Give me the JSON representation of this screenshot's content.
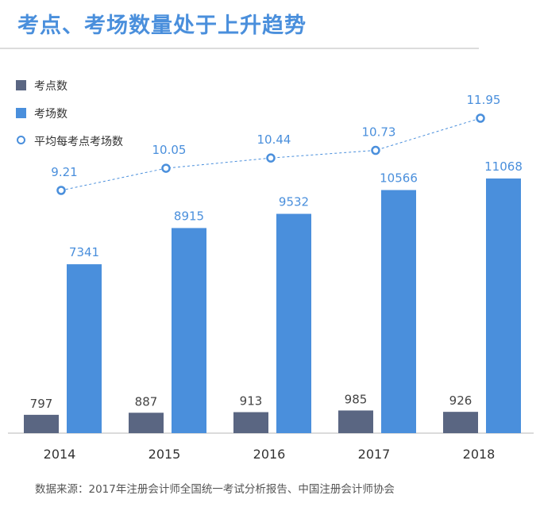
{
  "title": "考点、考场数量处于上升趋势",
  "legend": [
    "考点数",
    "考场数",
    "平均每考点考场数"
  ],
  "source": "数据来源：2017年注册会计师全国统一考试分析报告、中国注册会计师协会",
  "colors": {
    "exam_sites": "#5a6682",
    "exam_rooms": "#4a8fdc",
    "avg_line": "#4a8fdc",
    "title": "#4a8fdc"
  },
  "chart_data": {
    "type": "bar",
    "categories": [
      "2014",
      "2015",
      "2016",
      "2017",
      "2018"
    ],
    "series": [
      {
        "name": "考点数",
        "type": "bar",
        "values": [
          797,
          887,
          913,
          985,
          926
        ]
      },
      {
        "name": "考场数",
        "type": "bar",
        "values": [
          7341,
          8915,
          9532,
          10566,
          11068
        ]
      },
      {
        "name": "平均每考点考场数",
        "type": "line",
        "values": [
          9.21,
          10.05,
          10.44,
          10.73,
          11.95
        ]
      }
    ],
    "data_labels": true,
    "grid": false,
    "legend_position": "top-left"
  }
}
